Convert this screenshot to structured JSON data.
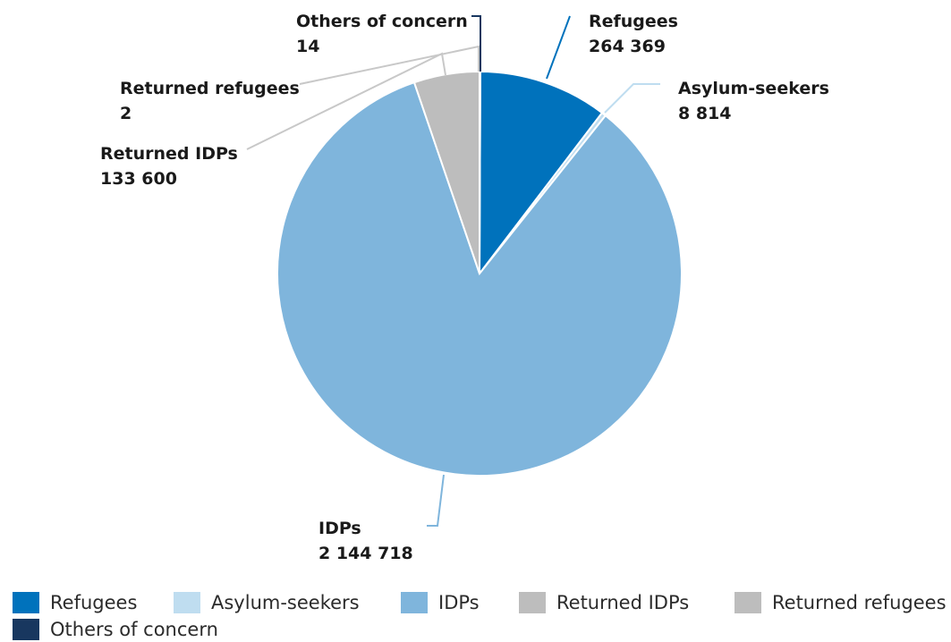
{
  "chart_data": {
    "type": "pie",
    "title": "",
    "slices": [
      {
        "name": "Refugees",
        "value": 264369,
        "value_label": "264 369",
        "color": "#0072BC"
      },
      {
        "name": "Asylum-seekers",
        "value": 8814,
        "value_label": "8 814",
        "color": "#BFDDF0"
      },
      {
        "name": "IDPs",
        "value": 2144718,
        "value_label": "2 144 718",
        "color": "#7FB5DC"
      },
      {
        "name": "Returned IDPs",
        "value": 133600,
        "value_label": "133 600",
        "color": "#BDBDBD"
      },
      {
        "name": "Returned refugees",
        "value": 2,
        "value_label": "2",
        "color": "#BDBDBD"
      },
      {
        "name": "Others of concern",
        "value": 14,
        "value_label": "14",
        "color": "#18375F"
      }
    ],
    "legend": {
      "placement": "bottom",
      "items": [
        {
          "label": "Refugees",
          "color": "#0072BC"
        },
        {
          "label": "Asylum-seekers",
          "color": "#BFDDF0"
        },
        {
          "label": "IDPs",
          "color": "#7FB5DC"
        },
        {
          "label": "Returned IDPs",
          "color": "#BDBDBD"
        },
        {
          "label": "Returned refugees",
          "color": "#BDBDBD"
        },
        {
          "label": "Others of concern",
          "color": "#18375F"
        }
      ]
    }
  }
}
